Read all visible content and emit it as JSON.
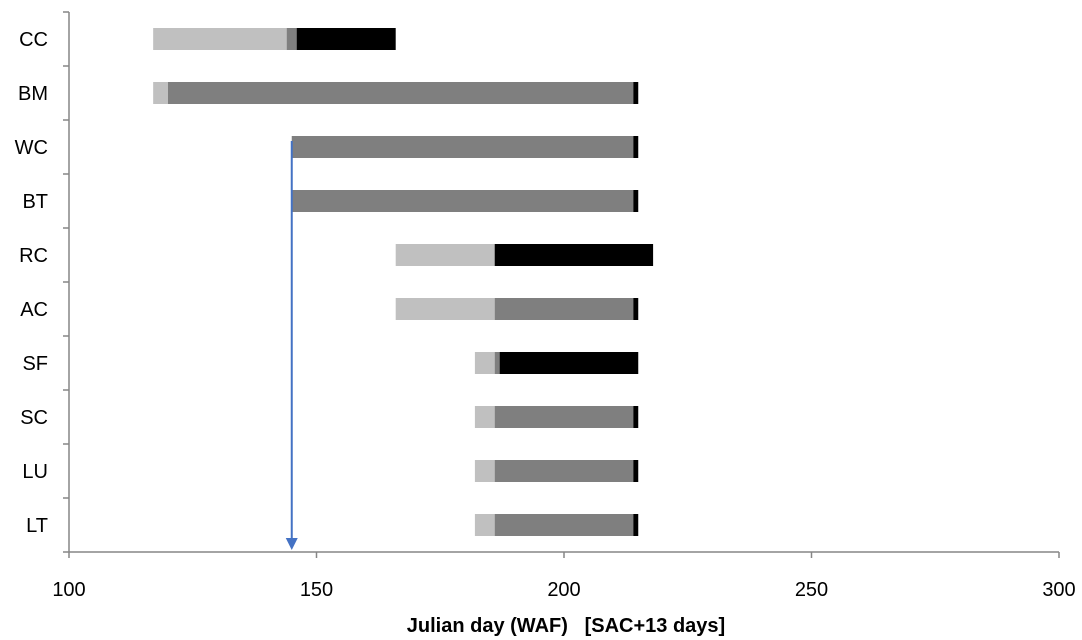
{
  "chart_data": {
    "type": "bar",
    "orientation": "horizontal",
    "stacked": true,
    "categories": [
      "CC",
      "BM",
      "WC",
      "BT",
      "RC",
      "AC",
      "SF",
      "SC",
      "LU",
      "LT"
    ],
    "series": [
      {
        "color": "#c0c0c0",
        "ranges": [
          [
            117,
            146
          ],
          [
            117,
            120
          ],
          null,
          null,
          [
            166,
            186
          ],
          [
            166,
            186
          ],
          [
            182,
            186
          ],
          [
            182,
            186
          ],
          [
            182,
            186
          ],
          [
            182,
            186
          ]
        ]
      },
      {
        "color": "#7f7f7f",
        "ranges": [
          [
            144,
            146
          ],
          [
            120,
            214
          ],
          [
            145,
            214
          ],
          [
            145,
            214
          ],
          null,
          [
            186,
            214
          ],
          [
            186,
            187
          ],
          [
            186,
            214
          ],
          [
            186,
            214
          ],
          [
            186,
            214
          ]
        ]
      },
      {
        "color": "#000000",
        "ranges": [
          [
            146,
            166
          ],
          [
            214,
            215
          ],
          [
            214,
            215
          ],
          [
            214,
            215
          ],
          [
            186,
            218
          ],
          [
            214,
            215
          ],
          [
            187,
            215
          ],
          [
            214,
            215
          ],
          [
            214,
            215
          ],
          [
            214,
            215
          ]
        ]
      }
    ],
    "marker": {
      "x": 145,
      "color": "#4472c4"
    },
    "xlim": [
      100,
      300
    ],
    "xticks": [
      "100",
      "150",
      "200",
      "250",
      "300"
    ],
    "xlabel": "Julian day (WAF)   [SAC+13 days]",
    "ylabel": "",
    "grid": false,
    "legend": "none"
  }
}
